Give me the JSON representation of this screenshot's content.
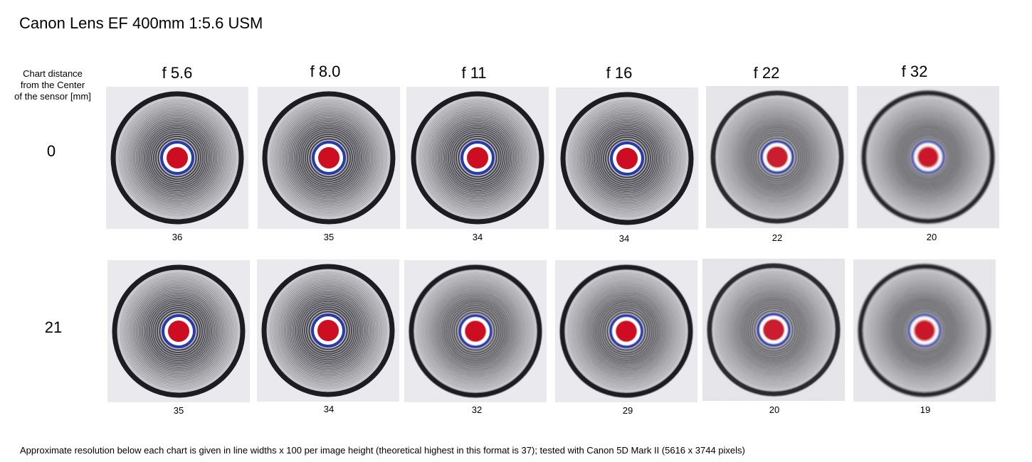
{
  "title": "Canon Lens EF 400mm 1:5.6 USM",
  "row_header": [
    "Chart distance",
    "from the Center",
    "of the sensor [mm]"
  ],
  "apertures": [
    "f 5.6",
    "f 8.0",
    "f 11",
    "f 16",
    "f 22",
    "f 32"
  ],
  "rows": [
    {
      "distance": "0",
      "scores": [
        "36",
        "35",
        "34",
        "34",
        "22",
        "20"
      ]
    },
    {
      "distance": "21",
      "scores": [
        "35",
        "34",
        "32",
        "29",
        "20",
        "19"
      ]
    }
  ],
  "footer": "Approximate resolution below each chart is given in line widths x 100 per image height (theoretical highest in this format is 37); tested with Canon 5D Mark II (5616 x 3744 pixels)",
  "colors": {
    "ring": "#1a1a22",
    "center": "#cc1020",
    "blue_ring": "#2a3aa8",
    "tile_bg": "#e9e9ee"
  }
}
